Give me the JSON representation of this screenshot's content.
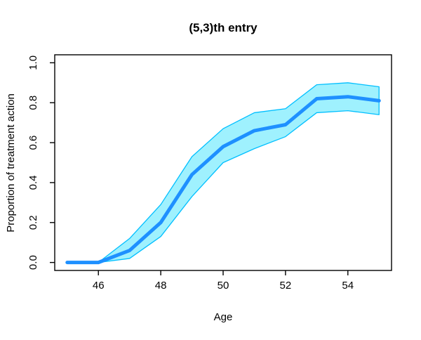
{
  "chart_data": {
    "type": "line",
    "title": "(5,3)th entry",
    "xlabel": "Age",
    "ylabel": "Proportion of treatment action",
    "x": [
      45,
      46,
      47,
      48,
      49,
      50,
      51,
      52,
      53,
      54,
      55
    ],
    "series": [
      {
        "name": "estimate",
        "values": [
          0.0,
          0.0,
          0.06,
          0.2,
          0.44,
          0.58,
          0.66,
          0.69,
          0.82,
          0.83,
          0.81
        ]
      },
      {
        "name": "lower_ci",
        "values": [
          0.0,
          0.0,
          0.02,
          0.13,
          0.33,
          0.5,
          0.57,
          0.63,
          0.75,
          0.76,
          0.74
        ]
      },
      {
        "name": "upper_ci",
        "values": [
          0.0,
          0.0,
          0.12,
          0.29,
          0.53,
          0.67,
          0.75,
          0.77,
          0.89,
          0.9,
          0.88
        ]
      }
    ],
    "x_ticks": [
      "46",
      "48",
      "50",
      "52",
      "54"
    ],
    "y_ticks": [
      "0.0",
      "0.2",
      "0.4",
      "0.6",
      "0.8",
      "1.0"
    ],
    "xlim": [
      44.6,
      55.4
    ],
    "ylim": [
      -0.04,
      1.04
    ],
    "grid": false,
    "legend": "none",
    "colors": {
      "estimate_line": "#1E90FF",
      "band_fill": "#9FF1FE",
      "band_edge": "#00BFFF",
      "axis": "#000000",
      "background": "#FFFFFF"
    }
  }
}
